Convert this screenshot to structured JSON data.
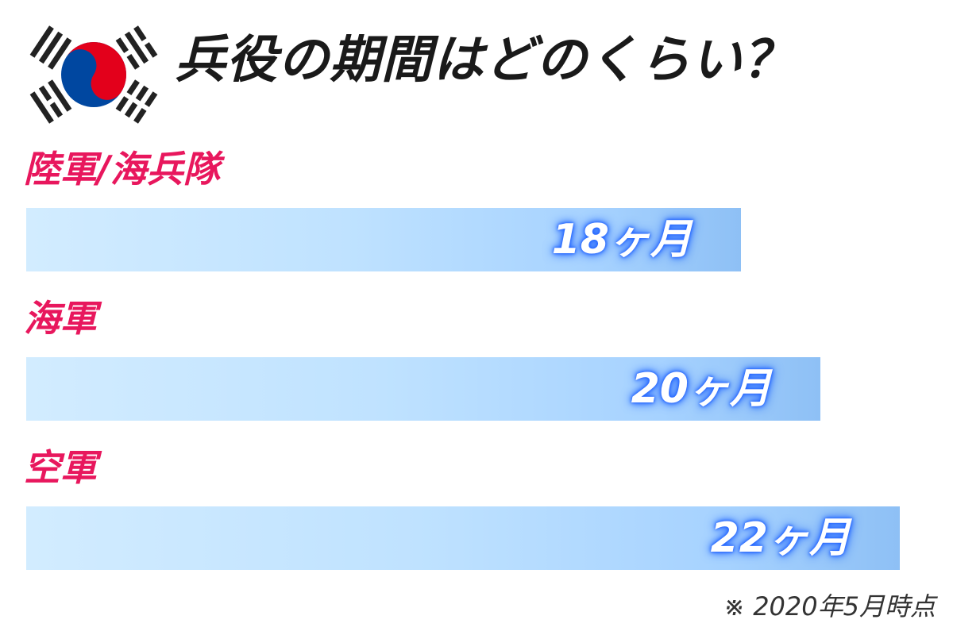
{
  "header": {
    "title": "兵役の期間はどのくらい？"
  },
  "colors": {
    "label": "#e8175d",
    "bar_start": "#d2ecff",
    "bar_end": "#8ec0f5",
    "value_glow": "#2a6bff",
    "flag_red": "#e3001b",
    "flag_blue": "#0047a0",
    "flag_black": "#222222"
  },
  "icons": {
    "flag": "south-korea-flag-icon"
  },
  "chart_data": {
    "type": "bar",
    "orientation": "horizontal",
    "categories": [
      "陸軍/海兵隊",
      "海軍",
      "空軍"
    ],
    "values": [
      18,
      20,
      22
    ],
    "value_labels": [
      "18ヶ月",
      "20ヶ月",
      "22ヶ月"
    ],
    "xlim": [
      0,
      22
    ],
    "grid": false
  },
  "footnote": "※ 2020年5月時点"
}
